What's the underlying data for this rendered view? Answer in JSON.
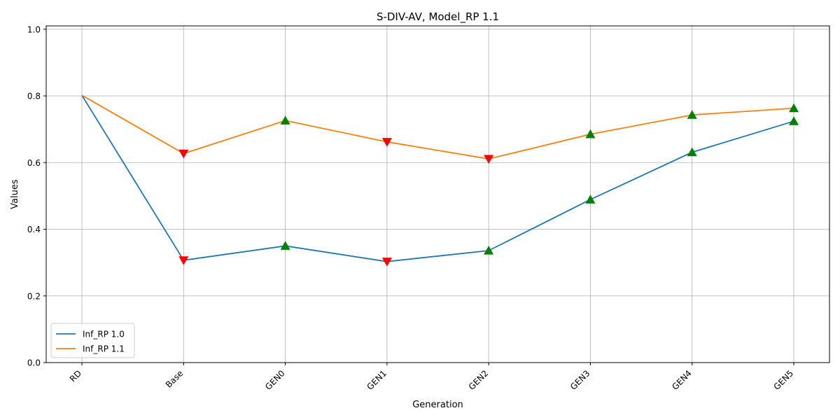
{
  "chart_data": {
    "type": "line",
    "title": "S-DIV-AV, Model_RP 1.1",
    "xlabel": "Generation",
    "ylabel": "Values",
    "categories": [
      "RD",
      "Base",
      "GEN0",
      "GEN1",
      "GEN2",
      "GEN3",
      "GEN4",
      "GEN5"
    ],
    "ylim": [
      0,
      1.01
    ],
    "yticks": [
      "0.0",
      "0.2",
      "0.4",
      "0.6",
      "0.8",
      "1.0"
    ],
    "grid": true,
    "legend_position": "lower-left",
    "series": [
      {
        "name": "Inf_RP 1.0",
        "color": "#1f77b4",
        "values": [
          0.802,
          0.307,
          0.35,
          0.303,
          0.336,
          0.489,
          0.631,
          0.724
        ],
        "markers": [
          "none",
          "down",
          "up",
          "down",
          "up",
          "up",
          "up",
          "up"
        ]
      },
      {
        "name": "Inf_RP 1.1",
        "color": "#ff7f0e",
        "values": [
          0.802,
          0.627,
          0.726,
          0.662,
          0.611,
          0.685,
          0.743,
          0.763
        ],
        "markers": [
          "none",
          "down",
          "up",
          "down",
          "down",
          "up",
          "up",
          "up"
        ]
      }
    ],
    "marker_colors": {
      "up": "#008000",
      "down": "#ff0000"
    }
  }
}
